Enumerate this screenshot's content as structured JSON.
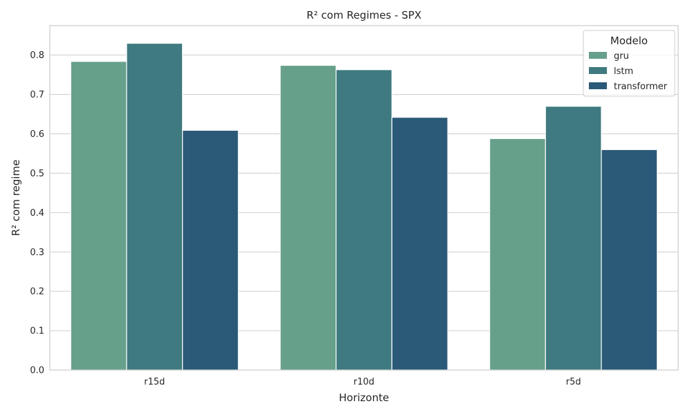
{
  "chart_data": {
    "type": "bar",
    "title": "R² com Regimes - SPX",
    "xlabel": "Horizonte",
    "ylabel": "R² com regime",
    "categories": [
      "r15d",
      "r10d",
      "r5d"
    ],
    "ylim": [
      0,
      0.875
    ],
    "yticks": [
      0.0,
      0.1,
      0.2,
      0.3,
      0.4,
      0.5,
      0.6,
      0.7,
      0.8
    ],
    "yticklabels": [
      "0.0",
      "0.1",
      "0.2",
      "0.3",
      "0.4",
      "0.5",
      "0.6",
      "0.7",
      "0.8"
    ],
    "grid": true,
    "legend": {
      "title": "Modelo",
      "placement": "top-right"
    },
    "series": [
      {
        "name": "gru",
        "color": "#66a08b",
        "values": [
          0.784,
          0.774,
          0.588
        ]
      },
      {
        "name": "lstm",
        "color": "#3e7a7f",
        "values": [
          0.83,
          0.763,
          0.67
        ]
      },
      {
        "name": "transformer",
        "color": "#2b5a78",
        "values": [
          0.609,
          0.642,
          0.56
        ]
      }
    ]
  }
}
